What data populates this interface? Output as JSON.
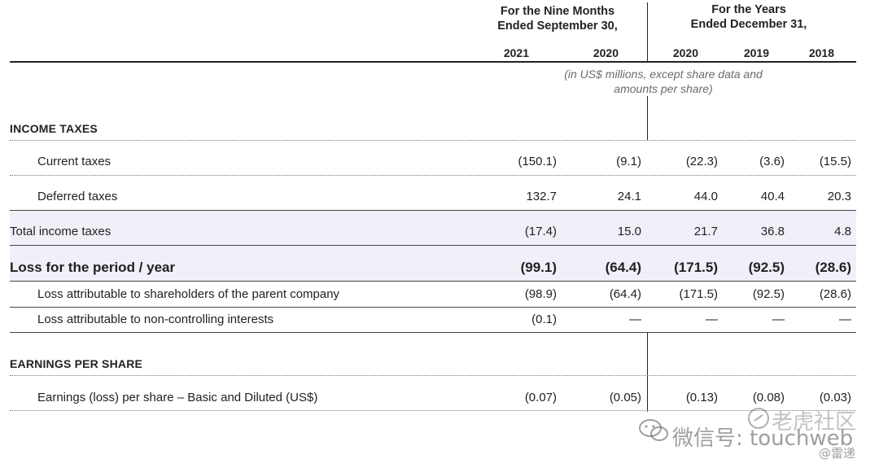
{
  "header": {
    "group1": [
      "For the Nine Months",
      "Ended September 30,"
    ],
    "group2": [
      "For the Years",
      "Ended December 31,"
    ],
    "years": [
      "2021",
      "2020",
      "2020",
      "2019",
      "2018"
    ],
    "units": [
      "(in US$ millions, except share data and",
      "amounts per share)"
    ]
  },
  "sections": {
    "income_taxes": "INCOME TAXES",
    "eps": "EARNINGS PER SHARE"
  },
  "rows": [
    {
      "label": "Current taxes",
      "values": [
        "(150.1)",
        "(9.1)",
        "(22.3)",
        "(3.6)",
        "(15.5)"
      ]
    },
    {
      "label": "Deferred taxes",
      "values": [
        "132.7",
        "24.1",
        "44.0",
        "40.4",
        "20.3"
      ]
    },
    {
      "label": "Total income taxes",
      "values": [
        "(17.4)",
        "15.0",
        "21.7",
        "36.8",
        "4.8"
      ]
    },
    {
      "label": "Loss for the period / year",
      "values": [
        "(99.1)",
        "(64.4)",
        "(171.5)",
        "(92.5)",
        "(28.6)"
      ]
    },
    {
      "label": "Loss attributable to shareholders of the parent company",
      "values": [
        "(98.9)",
        "(64.4)",
        "(171.5)",
        "(92.5)",
        "(28.6)"
      ]
    },
    {
      "label": "Loss attributable to non-controlling interests",
      "values": [
        "(0.1)",
        "—",
        "—",
        "—",
        "—"
      ]
    },
    {
      "label": "Earnings (loss) per share – Basic and Diluted (US$)",
      "values": [
        "(0.07)",
        "(0.05)",
        "(0.13)",
        "(0.08)",
        "(0.03)"
      ]
    }
  ],
  "watermark": {
    "line1": "微信号: touchweb",
    "line2": "老虎社区",
    "line3": "@雷递"
  }
}
